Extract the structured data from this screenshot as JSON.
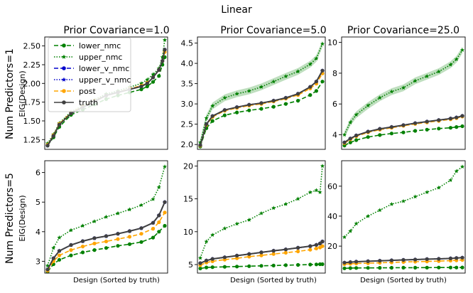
{
  "figure": {
    "suptitle": "Linear",
    "row_labels": [
      "Num Predictors=1",
      "Num Predictors=5"
    ],
    "col_titles": [
      "Prior Covariance=1.0",
      "Prior Covariance=5.0",
      "Prior Covariance=25.0"
    ],
    "xlabel": "Design (Sorted by truth)",
    "ylabel": "EIG(Design)"
  },
  "legend": {
    "entries": [
      {
        "name": "lower_nmc",
        "color": "#008000",
        "dash": "6,3",
        "marker": "dot"
      },
      {
        "name": "upper_nmc",
        "color": "#008000",
        "dash": "1.5,2",
        "marker": "star"
      },
      {
        "name": "lower_v_nmc",
        "color": "#0000cc",
        "dash": "6,3",
        "marker": "dot"
      },
      {
        "name": "upper_v_nmc",
        "color": "#0000cc",
        "dash": "1.5,2",
        "marker": "star"
      },
      {
        "name": "post",
        "color": "#ffa500",
        "dash": "6,3",
        "marker": "dot"
      },
      {
        "name": "truth",
        "color": "#404040",
        "dash": "",
        "marker": "dot"
      }
    ]
  },
  "chart_data": [
    {
      "type": "line",
      "row": 0,
      "col": 0,
      "title": "Prior Covariance=1.0",
      "ylim": [
        1.12,
        2.62
      ],
      "yticks": [
        1.25,
        1.5,
        1.75,
        2.0,
        2.25,
        2.5
      ],
      "ytick_labels": [
        "1.25",
        "1.50",
        "1.75",
        "2.00",
        "2.25",
        "2.50"
      ],
      "x": [
        0,
        5,
        10,
        20,
        30,
        40,
        50,
        60,
        70,
        80,
        85,
        90,
        95,
        98,
        100
      ],
      "series": [
        {
          "name": "truth",
          "values": [
            1.17,
            1.3,
            1.45,
            1.6,
            1.68,
            1.76,
            1.84,
            1.88,
            1.92,
            1.96,
            2.0,
            2.08,
            2.18,
            2.3,
            2.45
          ]
        },
        {
          "name": "post",
          "values": [
            1.18,
            1.31,
            1.46,
            1.61,
            1.69,
            1.77,
            1.84,
            1.88,
            1.93,
            1.97,
            2.01,
            2.08,
            2.18,
            2.3,
            2.42
          ]
        },
        {
          "name": "lower_nmc",
          "values": [
            1.17,
            1.28,
            1.42,
            1.58,
            1.65,
            1.72,
            1.79,
            1.84,
            1.88,
            1.92,
            1.96,
            2.02,
            2.1,
            2.25,
            2.35
          ]
        },
        {
          "name": "upper_nmc",
          "values": [
            1.2,
            1.32,
            1.47,
            1.62,
            1.7,
            1.78,
            1.86,
            1.9,
            1.95,
            2.0,
            2.05,
            2.12,
            2.2,
            2.35,
            2.58
          ]
        },
        {
          "name": "lower_v_nmc",
          "values": [
            1.17,
            1.3,
            1.45,
            1.6,
            1.68,
            1.76,
            1.84,
            1.88,
            1.92,
            1.96,
            2.0,
            2.08,
            2.18,
            2.3,
            2.45
          ]
        },
        {
          "name": "upper_v_nmc",
          "values": [
            1.17,
            1.3,
            1.45,
            1.6,
            1.68,
            1.76,
            1.84,
            1.88,
            1.92,
            1.96,
            2.0,
            2.08,
            2.18,
            2.3,
            2.45
          ]
        }
      ]
    },
    {
      "type": "line",
      "row": 0,
      "col": 1,
      "title": "Prior Covariance=5.0",
      "ylim": [
        1.88,
        4.65
      ],
      "yticks": [
        2.0,
        2.5,
        3.0,
        3.5,
        4.0,
        4.5
      ],
      "ytick_labels": [
        "2.0",
        "2.5",
        "3.0",
        "3.5",
        "4.0",
        "4.5"
      ],
      "x": [
        0,
        5,
        10,
        20,
        30,
        40,
        50,
        60,
        70,
        80,
        90,
        95,
        100
      ],
      "series": [
        {
          "name": "truth",
          "values": [
            1.98,
            2.5,
            2.7,
            2.85,
            2.92,
            2.98,
            3.02,
            3.08,
            3.15,
            3.25,
            3.42,
            3.55,
            3.82
          ]
        },
        {
          "name": "post",
          "values": [
            1.97,
            2.48,
            2.68,
            2.83,
            2.9,
            2.96,
            3.0,
            3.06,
            3.13,
            3.22,
            3.38,
            3.5,
            3.75
          ]
        },
        {
          "name": "lower_nmc",
          "values": [
            1.95,
            2.4,
            2.58,
            2.72,
            2.79,
            2.84,
            2.88,
            2.93,
            3.0,
            3.08,
            3.22,
            3.32,
            3.55
          ]
        },
        {
          "name": "upper_nmc",
          "values": [
            2.05,
            2.65,
            2.95,
            3.15,
            3.25,
            3.32,
            3.42,
            3.55,
            3.68,
            3.8,
            3.98,
            4.12,
            4.48
          ]
        },
        {
          "name": "lower_v_nmc",
          "values": [
            1.98,
            2.5,
            2.7,
            2.85,
            2.92,
            2.98,
            3.02,
            3.08,
            3.15,
            3.25,
            3.42,
            3.55,
            3.82
          ]
        },
        {
          "name": "upper_v_nmc",
          "values": [
            1.98,
            2.5,
            2.7,
            2.85,
            2.92,
            2.98,
            3.02,
            3.08,
            3.15,
            3.25,
            3.42,
            3.55,
            3.82
          ]
        }
      ]
    },
    {
      "type": "line",
      "row": 0,
      "col": 2,
      "title": "Prior Covariance=25.0",
      "ylim": [
        3.05,
        10.35
      ],
      "yticks": [
        4,
        6,
        8,
        10
      ],
      "ytick_labels": [
        "4",
        "6",
        "8",
        "10"
      ],
      "x": [
        0,
        5,
        10,
        20,
        30,
        40,
        50,
        60,
        70,
        80,
        90,
        95,
        100
      ],
      "series": [
        {
          "name": "truth",
          "values": [
            3.5,
            3.75,
            3.95,
            4.2,
            4.38,
            4.5,
            4.62,
            4.75,
            4.85,
            4.95,
            5.05,
            5.12,
            5.22
          ]
        },
        {
          "name": "post",
          "values": [
            3.45,
            3.7,
            3.9,
            4.15,
            4.33,
            4.45,
            4.58,
            4.7,
            4.8,
            4.9,
            5.0,
            5.08,
            5.18
          ]
        },
        {
          "name": "lower_nmc",
          "values": [
            3.3,
            3.5,
            3.65,
            3.85,
            3.98,
            4.08,
            4.15,
            4.25,
            4.33,
            4.4,
            4.45,
            4.5,
            4.55
          ]
        },
        {
          "name": "upper_nmc",
          "values": [
            4.0,
            4.8,
            5.3,
            5.9,
            6.4,
            6.8,
            7.05,
            7.5,
            7.8,
            8.1,
            8.55,
            8.9,
            9.5
          ]
        },
        {
          "name": "lower_v_nmc",
          "values": [
            3.5,
            3.75,
            3.95,
            4.2,
            4.38,
            4.5,
            4.62,
            4.75,
            4.85,
            4.95,
            5.05,
            5.12,
            5.22
          ]
        },
        {
          "name": "upper_v_nmc",
          "values": [
            3.5,
            3.75,
            3.95,
            4.2,
            4.38,
            4.5,
            4.62,
            4.75,
            4.85,
            4.95,
            5.05,
            5.12,
            5.22
          ]
        }
      ]
    },
    {
      "type": "line",
      "row": 1,
      "col": 0,
      "title": "",
      "ylim": [
        2.6,
        6.4
      ],
      "yticks": [
        3,
        4,
        5,
        6
      ],
      "ytick_labels": [
        "3",
        "4",
        "5",
        "6"
      ],
      "x": [
        0,
        5,
        10,
        20,
        30,
        40,
        50,
        60,
        70,
        80,
        90,
        95,
        100
      ],
      "series": [
        {
          "name": "truth",
          "values": [
            2.72,
            3.1,
            3.35,
            3.55,
            3.68,
            3.78,
            3.85,
            3.93,
            4.02,
            4.12,
            4.3,
            4.55,
            5.0
          ]
        },
        {
          "name": "post",
          "values": [
            2.68,
            3.0,
            3.2,
            3.38,
            3.5,
            3.6,
            3.67,
            3.75,
            3.83,
            3.93,
            4.1,
            4.32,
            4.65
          ]
        },
        {
          "name": "lower_nmc",
          "values": [
            2.65,
            2.9,
            3.05,
            3.2,
            3.3,
            3.38,
            3.45,
            3.52,
            3.58,
            3.65,
            3.8,
            4.0,
            4.2
          ]
        },
        {
          "name": "upper_nmc",
          "values": [
            2.85,
            3.45,
            3.8,
            4.05,
            4.2,
            4.35,
            4.5,
            4.62,
            4.75,
            4.9,
            5.1,
            5.5,
            6.2
          ]
        },
        {
          "name": "lower_v_nmc",
          "values": [
            2.72,
            3.1,
            3.35,
            3.55,
            3.68,
            3.78,
            3.85,
            3.93,
            4.02,
            4.12,
            4.3,
            4.55,
            5.0
          ]
        },
        {
          "name": "upper_v_nmc",
          "values": [
            2.72,
            3.1,
            3.35,
            3.55,
            3.68,
            3.78,
            3.85,
            3.93,
            4.02,
            4.12,
            4.3,
            4.55,
            5.0
          ]
        }
      ]
    },
    {
      "type": "line",
      "row": 1,
      "col": 1,
      "title": "",
      "ylim": [
        3.7,
        20.8
      ],
      "yticks": [
        5,
        10,
        15,
        20
      ],
      "ytick_labels": [
        "5",
        "10",
        "15",
        "20"
      ],
      "x": [
        0,
        5,
        10,
        20,
        30,
        40,
        50,
        60,
        70,
        80,
        90,
        95,
        98,
        100
      ],
      "series": [
        {
          "name": "truth",
          "values": [
            5.2,
            5.6,
            5.85,
            6.1,
            6.35,
            6.6,
            6.85,
            7.1,
            7.3,
            7.55,
            7.8,
            8.0,
            8.2,
            8.5
          ]
        },
        {
          "name": "post",
          "values": [
            4.9,
            5.3,
            5.5,
            5.75,
            5.95,
            6.2,
            6.4,
            6.6,
            6.8,
            7.0,
            7.25,
            7.45,
            7.6,
            7.8
          ]
        },
        {
          "name": "lower_nmc",
          "values": [
            4.4,
            4.55,
            4.6,
            4.65,
            4.7,
            4.75,
            4.8,
            4.85,
            4.9,
            4.95,
            5.0,
            5.02,
            5.05,
            5.05
          ]
        },
        {
          "name": "upper_nmc",
          "values": [
            6.0,
            8.5,
            9.5,
            10.5,
            11.2,
            11.8,
            12.8,
            13.6,
            14.2,
            15.0,
            16.0,
            16.3,
            16.0,
            20.0
          ]
        },
        {
          "name": "lower_v_nmc",
          "values": [
            5.2,
            5.6,
            5.85,
            6.1,
            6.35,
            6.6,
            6.85,
            7.1,
            7.3,
            7.55,
            7.8,
            8.0,
            8.2,
            8.5
          ]
        },
        {
          "name": "upper_v_nmc",
          "values": [
            5.2,
            5.6,
            5.85,
            6.1,
            6.35,
            6.6,
            6.85,
            7.1,
            7.3,
            7.55,
            7.8,
            8.0,
            8.2,
            8.5
          ]
        }
      ]
    },
    {
      "type": "line",
      "row": 1,
      "col": 2,
      "title": "",
      "ylim": [
        2.0,
        77.0
      ],
      "yticks": [
        20,
        40,
        60
      ],
      "ytick_labels": [
        "20",
        "40",
        "60"
      ],
      "x": [
        0,
        5,
        10,
        20,
        30,
        40,
        50,
        60,
        70,
        80,
        90,
        95,
        100
      ],
      "series": [
        {
          "name": "truth",
          "values": [
            9.0,
            9.3,
            9.6,
            9.9,
            10.2,
            10.5,
            10.8,
            11.0,
            11.3,
            11.5,
            11.8,
            12.0,
            12.3
          ]
        },
        {
          "name": "post",
          "values": [
            8.0,
            8.2,
            8.4,
            8.6,
            8.9,
            9.1,
            9.4,
            9.6,
            9.8,
            10.0,
            10.3,
            10.5,
            10.8
          ]
        },
        {
          "name": "lower_nmc",
          "values": [
            5.2,
            5.3,
            5.4,
            5.45,
            5.5,
            5.55,
            5.6,
            5.6,
            5.65,
            5.7,
            5.7,
            5.72,
            5.75
          ]
        },
        {
          "name": "upper_nmc",
          "values": [
            26.0,
            30.0,
            35.0,
            40.0,
            44.0,
            48.0,
            50.0,
            53.0,
            56.0,
            59.0,
            64.0,
            70.0,
            73.0
          ]
        },
        {
          "name": "lower_v_nmc",
          "values": [
            9.0,
            9.3,
            9.6,
            9.9,
            10.2,
            10.5,
            10.8,
            11.0,
            11.3,
            11.5,
            11.8,
            12.0,
            12.3
          ]
        },
        {
          "name": "upper_v_nmc",
          "values": [
            9.0,
            9.3,
            9.6,
            9.9,
            10.2,
            10.5,
            10.8,
            11.0,
            11.3,
            11.5,
            11.8,
            12.0,
            12.3
          ]
        }
      ]
    }
  ]
}
